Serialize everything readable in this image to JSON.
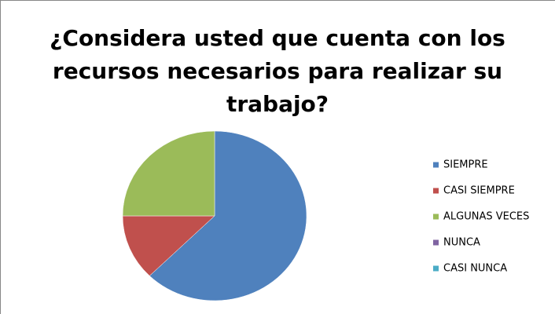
{
  "chart_data": {
    "type": "pie",
    "title": "¿Considera usted que cuenta con los recursos necesarios para realizar su trabajo?",
    "categories": [
      "SIEMPRE",
      "CASI SIEMPRE",
      "ALGUNAS VECES",
      "NUNCA",
      "CASI NUNCA"
    ],
    "values": [
      62.5,
      12.5,
      25,
      0,
      0
    ],
    "colors": [
      "#4f81bd",
      "#c0504d",
      "#9bbb59",
      "#8064a2",
      "#4bacc6"
    ],
    "legend": "right"
  }
}
